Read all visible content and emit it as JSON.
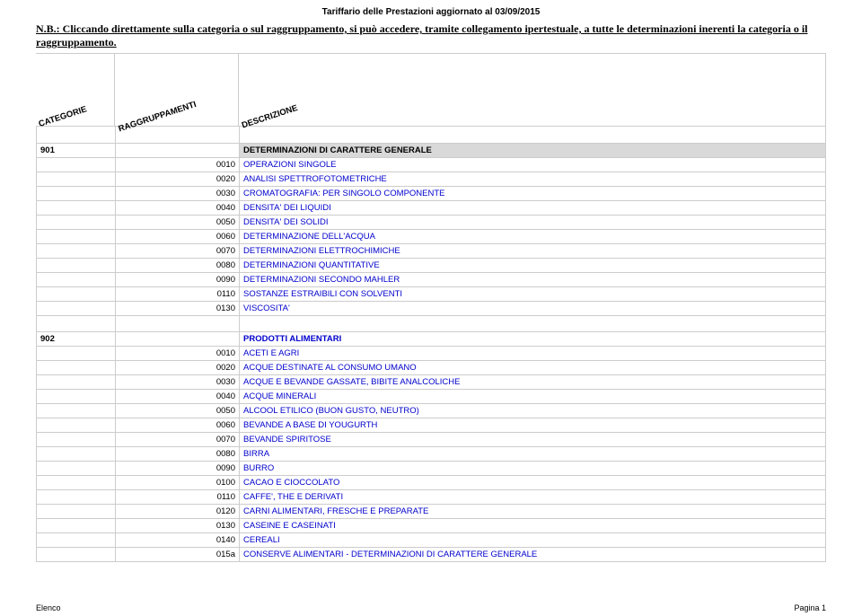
{
  "doc_title": "Tariffario delle Prestazioni aggiornato al 03/09/2015",
  "nb_text": "N.B.: Cliccando direttamente sulla categoria o sul raggruppamento, si può accedere, tramite collegamento ipertestuale, a tutte le determinazioni inerenti la categoria o il raggruppamento.",
  "headers": {
    "cat": "CATEGORIE",
    "grp": "RAGGRUPPAMENTI",
    "desc": "DESCRIZIONE"
  },
  "section901": {
    "code": "901",
    "title": "DETERMINAZIONI DI CARATTERE GENERALE"
  },
  "rows901": [
    {
      "code": "0010",
      "desc": "OPERAZIONI SINGOLE"
    },
    {
      "code": "0020",
      "desc": "ANALISI SPETTROFOTOMETRICHE"
    },
    {
      "code": "0030",
      "desc": "CROMATOGRAFIA: PER SINGOLO COMPONENTE"
    },
    {
      "code": "0040",
      "desc": "DENSITA' DEI LIQUIDI"
    },
    {
      "code": "0050",
      "desc": "DENSITA' DEI SOLIDI"
    },
    {
      "code": "0060",
      "desc": "DETERMINAZIONE DELL'ACQUA"
    },
    {
      "code": "0070",
      "desc": "DETERMINAZIONI ELETTROCHIMICHE"
    },
    {
      "code": "0080",
      "desc": "DETERMINAZIONI QUANTITATIVE"
    },
    {
      "code": "0090",
      "desc": "DETERMINAZIONI SECONDO MAHLER"
    },
    {
      "code": "0110",
      "desc": "SOSTANZE ESTRAIBILI CON SOLVENTI"
    },
    {
      "code": "0130",
      "desc": "VISCOSITA'"
    }
  ],
  "section902": {
    "code": "902",
    "title": "PRODOTTI ALIMENTARI"
  },
  "rows902": [
    {
      "code": "0010",
      "desc": "ACETI E AGRI"
    },
    {
      "code": "0020",
      "desc": "ACQUE DESTINATE AL CONSUMO UMANO"
    },
    {
      "code": "0030",
      "desc": "ACQUE E BEVANDE GASSATE, BIBITE ANALCOLICHE"
    },
    {
      "code": "0040",
      "desc": "ACQUE MINERALI"
    },
    {
      "code": "0050",
      "desc": "ALCOOL ETILICO (BUON GUSTO, NEUTRO)"
    },
    {
      "code": "0060",
      "desc": "BEVANDE A BASE DI YOUGURTH"
    },
    {
      "code": "0070",
      "desc": "BEVANDE SPIRITOSE"
    },
    {
      "code": "0080",
      "desc": "BIRRA"
    },
    {
      "code": "0090",
      "desc": "BURRO"
    },
    {
      "code": "0100",
      "desc": "CACAO E CIOCCOLATO"
    },
    {
      "code": "0110",
      "desc": "CAFFE', THE E DERIVATI"
    },
    {
      "code": "0120",
      "desc": "CARNI ALIMENTARI, FRESCHE E PREPARATE"
    },
    {
      "code": "0130",
      "desc": "CASEINE E CASEINATI"
    },
    {
      "code": "0140",
      "desc": "CEREALI"
    },
    {
      "code": "015a",
      "desc": "CONSERVE ALIMENTARI - DETERMINAZIONI DI CARATTERE GENERALE"
    }
  ],
  "footer": {
    "left": "Elenco",
    "right": "Pagina 1"
  }
}
